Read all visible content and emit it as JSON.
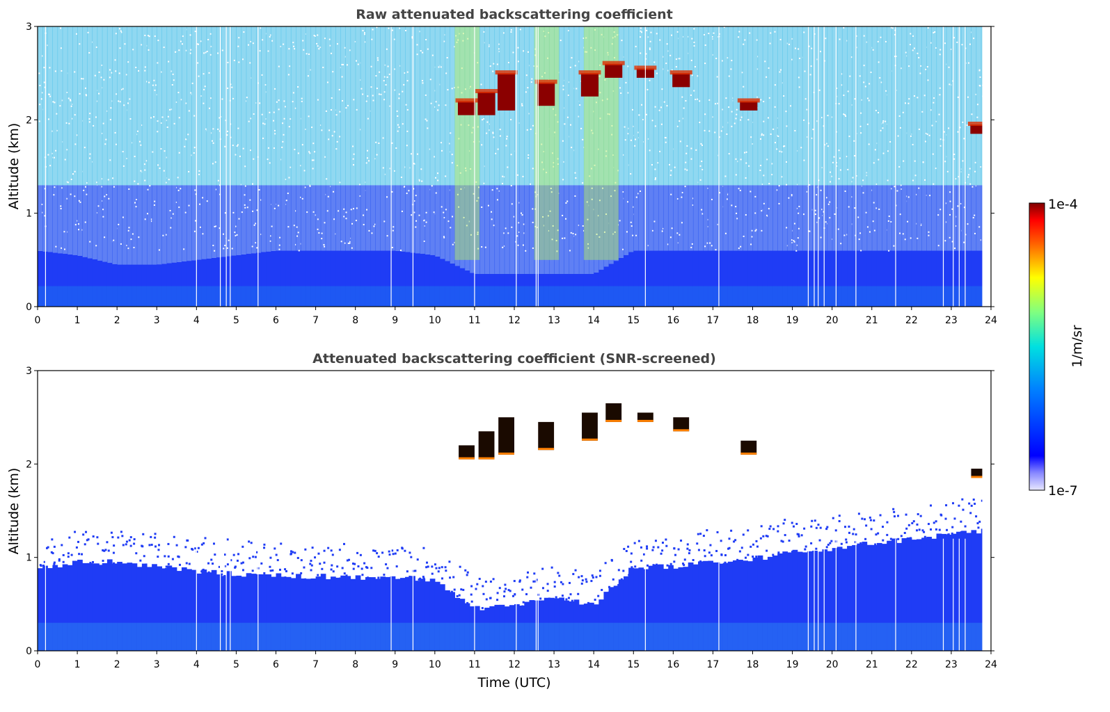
{
  "chart_data": [
    {
      "type": "heatmap",
      "title": "Raw attenuated backscattering coefficient",
      "xlabel": "",
      "ylabel": "Altitude (km)",
      "xlim": [
        0,
        24
      ],
      "ylim": [
        0,
        3
      ],
      "x_ticks": [
        "0",
        "1",
        "2",
        "3",
        "4",
        "5",
        "6",
        "7",
        "8",
        "9",
        "10",
        "11",
        "12",
        "13",
        "14",
        "15",
        "16",
        "17",
        "18",
        "19",
        "20",
        "21",
        "22",
        "23",
        "24"
      ],
      "y_ticks": [
        "0",
        "1",
        "2",
        "3"
      ],
      "colorscale": "jet",
      "colorbar": {
        "label": "1/m/sr",
        "min_label": "1e-7",
        "max_label": "1e-4"
      },
      "layers": [
        {
          "name": "aerosol_layer",
          "top_km": [
            0.6,
            0.55,
            0.45,
            0.45,
            0.5,
            0.55,
            0.6,
            0.6,
            0.6,
            0.6,
            0.55,
            0.35,
            0.35,
            0.35,
            0.35,
            0.6,
            0.6,
            0.6,
            0.6,
            0.6,
            0.6,
            0.6,
            0.6,
            0.6,
            0.6
          ]
        },
        {
          "name": "cloud_base",
          "cells": [
            [
              10.8,
              2.05,
              2.2
            ],
            [
              11.3,
              2.05,
              2.3
            ],
            [
              11.8,
              2.1,
              2.5
            ],
            [
              12.8,
              2.15,
              2.4
            ],
            [
              13.9,
              2.25,
              2.5
            ],
            [
              14.5,
              2.45,
              2.6
            ],
            [
              15.3,
              2.45,
              2.55
            ],
            [
              16.2,
              2.35,
              2.5
            ],
            [
              17.9,
              2.1,
              2.2
            ],
            [
              23.7,
              1.85,
              1.95
            ]
          ]
        }
      ],
      "missing_profiles_utc": [
        0.2,
        4.0,
        4.6,
        4.75,
        4.85,
        5.55,
        8.9,
        9.45,
        11.0,
        12.05,
        12.55,
        12.6,
        15.3,
        17.15,
        19.4,
        19.55,
        19.65,
        19.8,
        20.1,
        20.6,
        21.6,
        22.8,
        23.05,
        23.2,
        23.35
      ]
    },
    {
      "type": "heatmap",
      "title": "Attenuated backscattering coefficient (SNR-screened)",
      "xlabel": "Time (UTC)",
      "ylabel": "Altitude (km)",
      "xlim": [
        0,
        24
      ],
      "ylim": [
        0,
        3
      ],
      "x_ticks": [
        "0",
        "1",
        "2",
        "3",
        "4",
        "5",
        "6",
        "7",
        "8",
        "9",
        "10",
        "11",
        "12",
        "13",
        "14",
        "15",
        "16",
        "17",
        "18",
        "19",
        "20",
        "21",
        "22",
        "23",
        "24"
      ],
      "y_ticks": [
        "0",
        "1",
        "2",
        "3"
      ],
      "colorscale": "jet",
      "colorbar": {
        "label": "1/m/sr",
        "min_label": "1e-7",
        "max_label": "1e-4"
      },
      "boundary_layer_top_km": [
        0.88,
        0.95,
        0.95,
        0.9,
        0.85,
        0.82,
        0.8,
        0.8,
        0.78,
        0.8,
        0.75,
        0.45,
        0.5,
        0.55,
        0.5,
        0.9,
        0.9,
        0.95,
        0.98,
        1.05,
        1.1,
        1.15,
        1.2,
        1.25,
        1.3
      ],
      "cloud_cells": [
        [
          10.8,
          2.05,
          2.2
        ],
        [
          11.3,
          2.05,
          2.35
        ],
        [
          11.8,
          2.1,
          2.5
        ],
        [
          12.8,
          2.15,
          2.45
        ],
        [
          13.9,
          2.25,
          2.55
        ],
        [
          14.5,
          2.45,
          2.65
        ],
        [
          15.3,
          2.45,
          2.55
        ],
        [
          16.2,
          2.35,
          2.5
        ],
        [
          17.9,
          2.1,
          2.25
        ],
        [
          23.7,
          1.85,
          1.95
        ]
      ]
    }
  ]
}
